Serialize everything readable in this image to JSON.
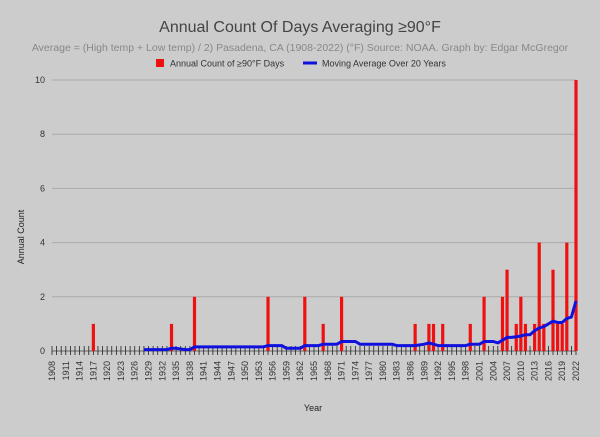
{
  "chart_data": {
    "type": "bar",
    "title": "Annual Count Of Days Averaging ≥90°F",
    "subtitle": "Average = (High temp + Low temp) / 2)  Pasadena, CA (1908-2022) (°F) Source: NOAA. Graph by: Edgar McGregor",
    "xlabel": "Year",
    "ylabel": "Annual Count",
    "ylim": [
      0,
      10
    ],
    "xlim": [
      1908,
      2022
    ],
    "y_ticks": [
      0,
      2,
      4,
      6,
      8,
      10
    ],
    "x_ticks": [
      1908,
      1911,
      1914,
      1917,
      1920,
      1923,
      1926,
      1929,
      1932,
      1935,
      1938,
      1941,
      1944,
      1947,
      1950,
      1953,
      1956,
      1959,
      1962,
      1965,
      1968,
      1971,
      1974,
      1977,
      1980,
      1983,
      1986,
      1989,
      1992,
      1995,
      1998,
      2001,
      2004,
      2007,
      2010,
      2013,
      2016,
      2019,
      2022
    ],
    "grid": true,
    "legend_position": "top",
    "colors": {
      "bars": "#ee1111",
      "line": "#1111dd",
      "grid": "#aaaaaa",
      "background": "#cccccc"
    },
    "series": [
      {
        "name": "Annual Count of ≥90°F Days",
        "type": "bar",
        "points": [
          [
            1917,
            1
          ],
          [
            1934,
            1
          ],
          [
            1939,
            2
          ],
          [
            1955,
            2
          ],
          [
            1963,
            2
          ],
          [
            1967,
            1
          ],
          [
            1971,
            2
          ],
          [
            1987,
            1
          ],
          [
            1990,
            1
          ],
          [
            1991,
            1
          ],
          [
            1993,
            1
          ],
          [
            1999,
            1
          ],
          [
            2002,
            2
          ],
          [
            2006,
            2
          ],
          [
            2007,
            3
          ],
          [
            2009,
            1
          ],
          [
            2010,
            2
          ],
          [
            2011,
            1
          ],
          [
            2013,
            1
          ],
          [
            2014,
            4
          ],
          [
            2015,
            1
          ],
          [
            2017,
            3
          ],
          [
            2018,
            1
          ],
          [
            2019,
            1
          ],
          [
            2020,
            4
          ],
          [
            2022,
            10
          ]
        ]
      },
      {
        "name": "Moving Average Over 20 Years",
        "type": "line",
        "x": [
          1928,
          1933,
          1934,
          1935,
          1937,
          1938,
          1939,
          1954,
          1955,
          1958,
          1959,
          1962,
          1963,
          1966,
          1967,
          1970,
          1971,
          1974,
          1975,
          1982,
          1983,
          1986,
          1987,
          1989,
          1990,
          1991,
          1992,
          1993,
          1998,
          1999,
          2001,
          2002,
          2004,
          2005,
          2006,
          2007,
          2008,
          2010,
          2011,
          2012,
          2013,
          2014,
          2015,
          2016,
          2017,
          2018,
          2019,
          2020,
          2021,
          2022
        ],
        "values": [
          0.05,
          0.05,
          0.1,
          0.1,
          0.05,
          0.05,
          0.15,
          0.15,
          0.2,
          0.2,
          0.1,
          0.1,
          0.2,
          0.2,
          0.25,
          0.25,
          0.35,
          0.35,
          0.25,
          0.25,
          0.2,
          0.2,
          0.2,
          0.25,
          0.3,
          0.25,
          0.2,
          0.2,
          0.2,
          0.25,
          0.25,
          0.35,
          0.35,
          0.3,
          0.4,
          0.5,
          0.5,
          0.55,
          0.6,
          0.6,
          0.75,
          0.85,
          0.9,
          1.0,
          1.1,
          1.05,
          1.05,
          1.2,
          1.25,
          1.85
        ]
      }
    ]
  }
}
